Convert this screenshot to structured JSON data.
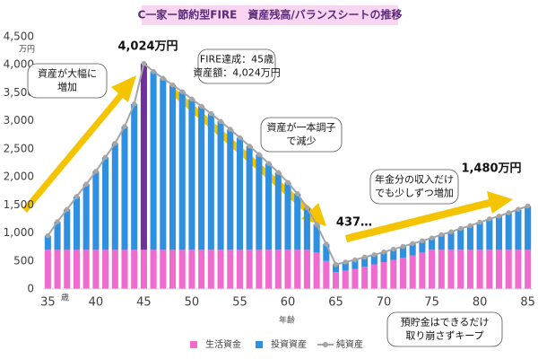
{
  "chart_data": {
    "type": "stacked_bar_line",
    "title": "C一家ー節約型FIRE　資産残高/バランスシートの推移",
    "y_unit": "万円",
    "x_unit": "歳",
    "x_label": "年齢",
    "categories": [
      "35",
      null,
      null,
      null,
      null,
      "40",
      null,
      null,
      null,
      null,
      "45",
      null,
      null,
      null,
      null,
      "50",
      null,
      null,
      null,
      null,
      "55",
      null,
      null,
      null,
      null,
      "60",
      null,
      null,
      null,
      null,
      "65",
      null,
      null,
      null,
      null,
      "70",
      null,
      null,
      null,
      null,
      "75",
      null,
      null,
      null,
      null,
      "80",
      null,
      null,
      null,
      null,
      "85"
    ],
    "series": [
      {
        "name": "生活資金",
        "kind": "bar",
        "color": "#f06bd0",
        "values": [
          700,
          700,
          700,
          700,
          700,
          700,
          700,
          700,
          700,
          700,
          700,
          700,
          700,
          700,
          700,
          700,
          700,
          700,
          700,
          700,
          700,
          700,
          700,
          700,
          700,
          700,
          700,
          700,
          650,
          500,
          300,
          330,
          360,
          400,
          440,
          480,
          520,
          560,
          600,
          650,
          700,
          700,
          700,
          700,
          700,
          700,
          700,
          700,
          700,
          700,
          700
        ]
      },
      {
        "name": "投資資産",
        "kind": "bar",
        "color": "#2f8fe0",
        "highlight_color": "#7030a0",
        "highlight_category": "45",
        "values": [
          250,
          500,
          720,
          950,
          1170,
          1400,
          1650,
          1900,
          2200,
          2600,
          3324,
          3180,
          3060,
          2940,
          2820,
          2690,
          2560,
          2430,
          2290,
          2150,
          2000,
          1850,
          1700,
          1540,
          1380,
          1200,
          1000,
          750,
          500,
          300,
          137,
          150,
          160,
          170,
          170,
          180,
          190,
          200,
          210,
          210,
          210,
          270,
          320,
          380,
          430,
          490,
          550,
          600,
          660,
          720,
          780
        ]
      },
      {
        "name": "純資産",
        "kind": "line",
        "color": "#a6a6a6",
        "values": [
          950,
          1200,
          1420,
          1650,
          1870,
          2100,
          2350,
          2600,
          2900,
          3300,
          4024,
          3880,
          3760,
          3640,
          3520,
          3390,
          3260,
          3130,
          2990,
          2850,
          2700,
          2550,
          2400,
          2240,
          2080,
          1900,
          1700,
          1450,
          1150,
          800,
          437,
          480,
          520,
          570,
          610,
          660,
          710,
          760,
          810,
          860,
          910,
          970,
          1020,
          1080,
          1130,
          1190,
          1250,
          1300,
          1360,
          1420,
          1480
        ]
      }
    ],
    "ylim": [
      0,
      4500
    ],
    "yticks": [
      0,
      500,
      {
        "value": 1000,
        "label": "1,000"
      },
      {
        "value": 1500,
        "label": "1,500"
      },
      {
        "value": 2000,
        "label": "2,000"
      },
      {
        "value": 2500,
        "label": "2,500"
      },
      {
        "value": 3000,
        "label": "3,000"
      },
      {
        "value": 3500,
        "label": "3,500"
      },
      {
        "value": 4000,
        "label": "4,000"
      },
      {
        "value": 4500,
        "label": "4,500"
      }
    ],
    "annotations": [
      {
        "lines": [
          "4,024万円"
        ]
      },
      {
        "lines": [
          "FIRE達成：45歳",
          "資産額：4,024万円"
        ]
      },
      {
        "lines": [
          "資産が大幅に",
          "増加"
        ]
      },
      {
        "lines": [
          "資産が一本調子",
          "で減少"
        ]
      },
      {
        "lines": [
          "437…"
        ]
      },
      {
        "lines": [
          "1,480万円"
        ]
      },
      {
        "lines": [
          "年金分の収入だけ",
          "でも少しずつ増加"
        ]
      },
      {
        "lines": [
          "預貯金はできるだけ",
          "取り崩さずキープ"
        ]
      }
    ]
  }
}
